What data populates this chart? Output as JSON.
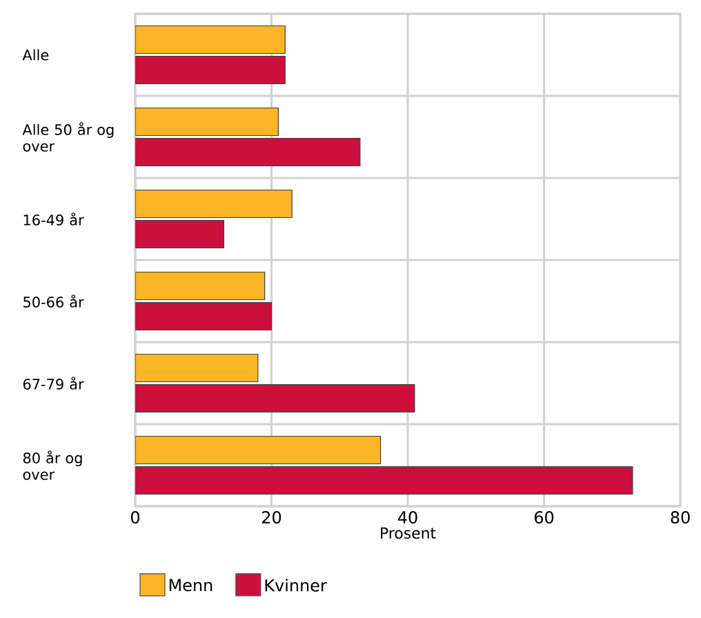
{
  "chart_data": {
    "type": "bar",
    "orientation": "horizontal",
    "xlabel": "Prosent",
    "categories": [
      "Alle",
      "Alle 50 år og over",
      "16-49 år",
      "50-66 år",
      "67-79 år",
      "80 år og over"
    ],
    "series": [
      {
        "name": "Menn",
        "color": "#fbb527",
        "values": [
          22,
          21,
          23,
          19,
          18,
          36
        ]
      },
      {
        "name": "Kvinner",
        "color": "#cd0f3e",
        "values": [
          22,
          33,
          13,
          20,
          41,
          73
        ]
      }
    ],
    "xlim": [
      0,
      80
    ],
    "xticks": [
      0,
      20,
      40,
      60,
      80
    ],
    "grid": true,
    "legend": "bottom"
  }
}
